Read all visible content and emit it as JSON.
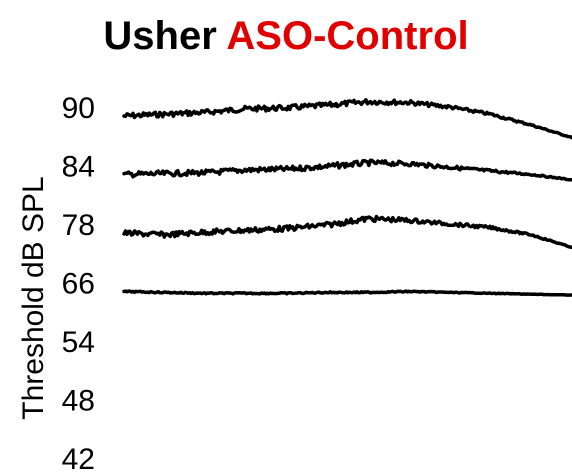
{
  "title": {
    "main": "Usher",
    "accent": "ASO-Control",
    "accent_color": "#e00000"
  },
  "chart_data": {
    "type": "line",
    "title": "Usher ASO-Control",
    "xlabel": "",
    "ylabel": "Threshold dB SPL",
    "y_tick_labels": [
      "90",
      "84",
      "78",
      "66",
      "54",
      "48",
      "42"
    ],
    "legend": "none",
    "grid": false,
    "line_color": "#000000",
    "series": [
      {
        "level": "90",
        "profile": [
          0,
          0.2,
          0.4,
          0.8,
          0.9,
          1.2,
          1.6,
          1.5,
          1.0,
          0.2,
          -1.0,
          -2.4
        ]
      },
      {
        "level": "84",
        "profile": [
          0,
          0.1,
          0.2,
          0.5,
          0.6,
          0.9,
          1.3,
          1.2,
          0.8,
          0.4,
          0.0,
          -0.6
        ]
      },
      {
        "level": "78",
        "profile": [
          0,
          -0.2,
          0.1,
          0.3,
          0.5,
          0.9,
          1.6,
          1.4,
          1.0,
          0.6,
          -0.2,
          -1.6
        ]
      },
      {
        "level": "66",
        "profile": [
          0,
          -0.1,
          -0.2,
          -0.2,
          -0.2,
          -0.1,
          -0.1,
          0.0,
          -0.1,
          -0.2,
          -0.3,
          -0.4
        ]
      }
    ]
  }
}
